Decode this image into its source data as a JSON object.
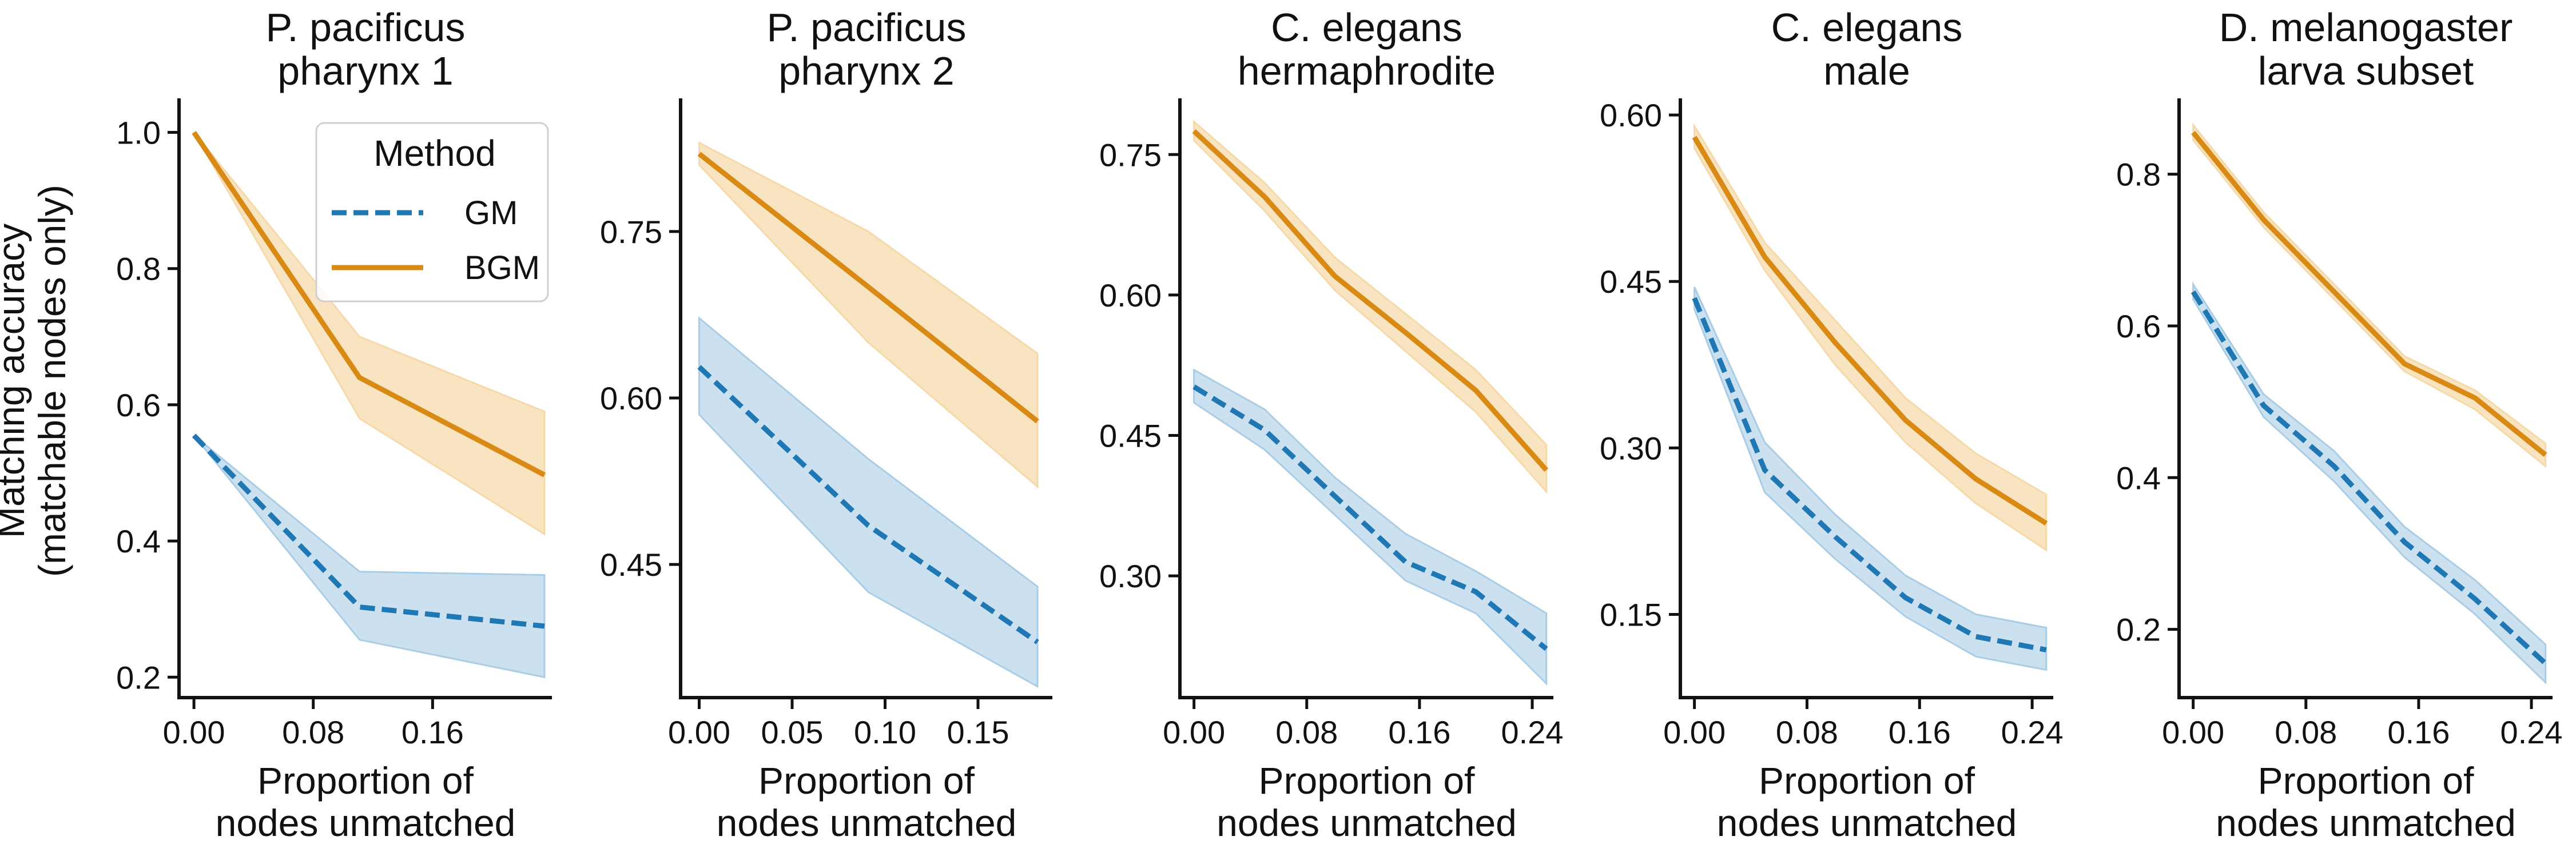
{
  "figure": {
    "ylabel": [
      "Matching accuracy",
      "(matchable nodes only)"
    ],
    "legend": {
      "title": "Method",
      "entries": [
        {
          "name": "GM",
          "color": "#1f77b4",
          "style": "dashed"
        },
        {
          "name": "BGM",
          "color": "#d98a14",
          "style": "solid"
        }
      ]
    }
  },
  "chart_data": [
    {
      "type": "line",
      "title": [
        "P. pacificus",
        "pharynx 1"
      ],
      "xlabel": [
        "Proportion of",
        "nodes unmatched"
      ],
      "xlim": [
        -0.01,
        0.24
      ],
      "ylim": [
        0.17,
        1.05
      ],
      "xticks": [
        "0.00",
        "0.08",
        "0.16"
      ],
      "yticks": [
        "0.2",
        "0.4",
        "0.6",
        "0.8",
        "1.0"
      ],
      "x": [
        0.0,
        0.111,
        0.235
      ],
      "series": [
        {
          "name": "GM",
          "mean": [
            0.555,
            0.303,
            0.275
          ],
          "lower": [
            0.555,
            0.255,
            0.2
          ],
          "upper": [
            0.555,
            0.355,
            0.35
          ]
        },
        {
          "name": "BGM",
          "mean": [
            1.0,
            0.64,
            0.497
          ],
          "lower": [
            1.0,
            0.58,
            0.41
          ],
          "upper": [
            1.0,
            0.7,
            0.59
          ]
        }
      ]
    },
    {
      "type": "line",
      "title": [
        "P. pacificus",
        "pharynx 2"
      ],
      "xlabel": [
        "Proportion of",
        "nodes unmatched"
      ],
      "xlim": [
        -0.01,
        0.19
      ],
      "ylim": [
        0.33,
        0.87
      ],
      "xticks": [
        "0.00",
        "0.05",
        "0.10",
        "0.15"
      ],
      "yticks": [
        "0.45",
        "0.60",
        "0.75"
      ],
      "x": [
        0.0,
        0.091,
        0.182
      ],
      "series": [
        {
          "name": "GM",
          "mean": [
            0.628,
            0.485,
            0.38
          ],
          "lower": [
            0.585,
            0.425,
            0.34
          ],
          "upper": [
            0.672,
            0.545,
            0.43
          ]
        },
        {
          "name": "BGM",
          "mean": [
            0.82,
            0.7,
            0.579
          ],
          "lower": [
            0.81,
            0.65,
            0.52
          ],
          "upper": [
            0.83,
            0.75,
            0.64
          ]
        }
      ]
    },
    {
      "type": "line",
      "title": [
        "C. elegans",
        "hermaphrodite"
      ],
      "xlabel": [
        "Proportion of",
        "nodes unmatched"
      ],
      "xlim": [
        -0.01,
        0.255
      ],
      "ylim": [
        0.17,
        0.81
      ],
      "xticks": [
        "0.00",
        "0.08",
        "0.16",
        "0.24"
      ],
      "yticks": [
        "0.30",
        "0.45",
        "0.60",
        "0.75"
      ],
      "x": [
        0.0,
        0.05,
        0.1,
        0.15,
        0.2,
        0.25
      ],
      "series": [
        {
          "name": "GM",
          "mean": [
            0.502,
            0.456,
            0.385,
            0.315,
            0.283,
            0.222
          ],
          "lower": [
            0.485,
            0.435,
            0.365,
            0.295,
            0.26,
            0.185
          ],
          "upper": [
            0.52,
            0.478,
            0.405,
            0.345,
            0.305,
            0.26
          ]
        },
        {
          "name": "BGM",
          "mean": [
            0.775,
            0.705,
            0.62,
            0.56,
            0.498,
            0.413
          ],
          "lower": [
            0.765,
            0.69,
            0.605,
            0.54,
            0.475,
            0.39
          ],
          "upper": [
            0.785,
            0.72,
            0.64,
            0.58,
            0.52,
            0.44
          ]
        }
      ]
    },
    {
      "type": "line",
      "title": [
        "C. elegans",
        "male"
      ],
      "xlabel": [
        "Proportion of",
        "nodes unmatched"
      ],
      "xlim": [
        -0.01,
        0.255
      ],
      "ylim": [
        0.075,
        0.615
      ],
      "xticks": [
        "0.00",
        "0.08",
        "0.16",
        "0.24"
      ],
      "yticks": [
        "0.15",
        "0.30",
        "0.45",
        "0.60"
      ],
      "x": [
        0.0,
        0.05,
        0.1,
        0.15,
        0.2,
        0.25
      ],
      "series": [
        {
          "name": "GM",
          "mean": [
            0.435,
            0.28,
            0.22,
            0.165,
            0.13,
            0.118
          ],
          "lower": [
            0.425,
            0.26,
            0.2,
            0.148,
            0.112,
            0.1
          ],
          "upper": [
            0.445,
            0.305,
            0.24,
            0.185,
            0.15,
            0.138
          ]
        },
        {
          "name": "BGM",
          "mean": [
            0.58,
            0.472,
            0.395,
            0.325,
            0.272,
            0.232
          ],
          "lower": [
            0.57,
            0.46,
            0.375,
            0.305,
            0.25,
            0.208
          ],
          "upper": [
            0.59,
            0.485,
            0.415,
            0.345,
            0.295,
            0.258
          ]
        }
      ]
    },
    {
      "type": "line",
      "title": [
        "D. melanogaster",
        "larva subset"
      ],
      "xlabel": [
        "Proportion of",
        "nodes unmatched"
      ],
      "xlim": [
        -0.01,
        0.255
      ],
      "ylim": [
        0.11,
        0.9
      ],
      "xticks": [
        "0.00",
        "0.08",
        "0.16",
        "0.24"
      ],
      "yticks": [
        "0.2",
        "0.4",
        "0.6",
        "0.8"
      ],
      "x": [
        0.0,
        0.05,
        0.1,
        0.15,
        0.2,
        0.25
      ],
      "series": [
        {
          "name": "GM",
          "mean": [
            0.645,
            0.495,
            0.415,
            0.315,
            0.24,
            0.155
          ],
          "lower": [
            0.635,
            0.48,
            0.395,
            0.295,
            0.22,
            0.13
          ],
          "upper": [
            0.655,
            0.51,
            0.435,
            0.335,
            0.265,
            0.18
          ]
        },
        {
          "name": "BGM",
          "mean": [
            0.855,
            0.74,
            0.645,
            0.55,
            0.505,
            0.43
          ],
          "lower": [
            0.845,
            0.73,
            0.635,
            0.54,
            0.49,
            0.415
          ],
          "upper": [
            0.865,
            0.75,
            0.655,
            0.56,
            0.515,
            0.445
          ]
        }
      ]
    }
  ]
}
